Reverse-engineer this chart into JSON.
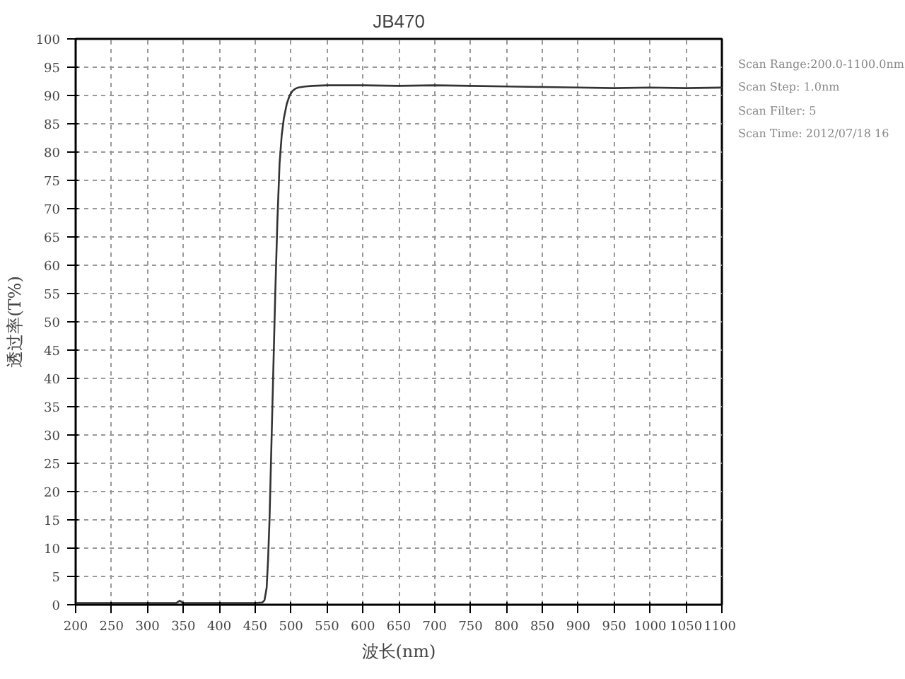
{
  "chart_data": {
    "type": "line",
    "title": "JB470",
    "xlabel": "波长(nm)",
    "ylabel": "透过率(T%)",
    "annotations": [
      "Scan Range:200.0-1100.0nm",
      "Scan Step:  1.0nm",
      "Scan Filter:  5",
      "Scan Time:  2012/07/18  16"
    ],
    "series": [
      {
        "color": "#333333",
        "x": [
          200,
          250,
          300,
          340,
          345,
          350,
          400,
          450,
          460,
          463,
          466,
          468,
          470,
          472,
          475,
          478,
          481,
          484,
          487,
          490,
          494,
          498,
          502,
          506,
          510,
          520,
          530,
          550,
          600,
          650,
          700,
          750,
          800,
          850,
          900,
          950,
          1000,
          1050,
          1100
        ],
        "values": [
          0.3,
          0.3,
          0.3,
          0.3,
          0.7,
          0.3,
          0.3,
          0.3,
          0.4,
          0.8,
          3,
          8,
          15,
          25,
          40,
          55,
          68,
          78,
          83,
          86,
          88.5,
          90,
          90.8,
          91.2,
          91.4,
          91.6,
          91.7,
          91.8,
          91.8,
          91.7,
          91.8,
          91.7,
          91.6,
          91.5,
          91.4,
          91.3,
          91.4,
          91.3,
          91.4
        ]
      }
    ],
    "xlim": [
      200,
      1100
    ],
    "ylim": [
      0,
      100
    ],
    "xticks": [
      200,
      250,
      300,
      350,
      400,
      450,
      500,
      550,
      600,
      650,
      700,
      750,
      800,
      850,
      900,
      950,
      1000,
      1050,
      1100
    ],
    "yticks": [
      0,
      5,
      10,
      15,
      20,
      25,
      30,
      35,
      40,
      45,
      50,
      55,
      60,
      65,
      70,
      75,
      80,
      85,
      90,
      95,
      100
    ],
    "grid": true,
    "line_style": "solid",
    "marker": "none"
  }
}
